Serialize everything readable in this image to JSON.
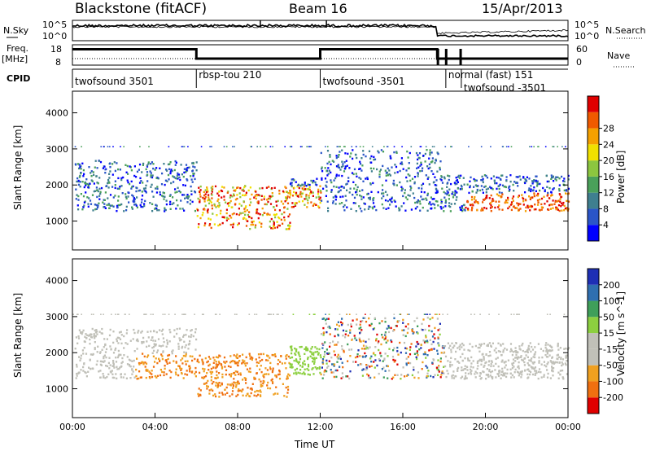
{
  "header": {
    "radar": "Blackstone (fitACF)",
    "beam": "Beam 16",
    "date": "15/Apr/2013"
  },
  "left_labels": {
    "nsky": "N.Sky",
    "freq_line1": "Freq.",
    "freq_line2": "[MHz]",
    "cpid": "CPID"
  },
  "right_labels": {
    "nsearch": "N.Search",
    "nave": "Nave"
  },
  "colors": {
    "power": [
      "#0000ff",
      "#2a55c8",
      "#3f7f8f",
      "#4aa05a",
      "#8cc63f",
      "#f0e000",
      "#f5a000",
      "#f05a00",
      "#e00000"
    ],
    "velocity": [
      "#1e2fb5",
      "#2f6fb0",
      "#3f9f5a",
      "#8ccf3f",
      "#c0c0b8",
      "#c0c0b8",
      "#f0a020",
      "#f07010",
      "#e00000"
    ]
  },
  "chart_data": [
    {
      "type": "line",
      "name": "noise-panel",
      "left_ylabel": "N.Sky",
      "right_ylabel": "N.Search",
      "left_ticks": [
        "10^5",
        "10^0"
      ],
      "right_ticks": [
        "10^5",
        "10^0"
      ],
      "yscale": "log",
      "ylim": [
        1,
        100000
      ]
    },
    {
      "type": "line",
      "name": "frequency-panel",
      "left_ylabel": "Freq. [MHz]",
      "right_ylabel": "Nave",
      "left_ticks": [
        18,
        8
      ],
      "right_ticks": [
        60,
        0
      ],
      "ylim": [
        8,
        18
      ],
      "freq_segments": [
        {
          "x": [
            "00:00",
            "06:00"
          ],
          "y": 15.8
        },
        {
          "x": [
            "06:00",
            "12:00"
          ],
          "y": 11.2
        },
        {
          "x": [
            "12:00",
            "17:40"
          ],
          "y": 15.8
        },
        {
          "x": [
            "17:40",
            "24:00"
          ],
          "y": 11.2
        }
      ]
    },
    {
      "type": "table",
      "name": "cpid-bar",
      "segments": [
        {
          "start": "00:00",
          "end": "06:00",
          "label": "twofsound 3501"
        },
        {
          "start": "06:00",
          "end": "12:00",
          "label": "rbsp-tou 210"
        },
        {
          "start": "12:00",
          "end": "18:05",
          "label": "twofsound -3501"
        },
        {
          "start": "18:05",
          "end": "18:50",
          "label": "normal (fast) 151"
        },
        {
          "start": "18:50",
          "end": "24:00",
          "label": "twofsound -3501"
        }
      ]
    },
    {
      "type": "heatmap",
      "name": "power-panel",
      "ylabel": "Slant Range [km]",
      "yticks": [
        1000,
        2000,
        3000,
        4000
      ],
      "ylim": [
        200,
        4600
      ],
      "xlim": [
        "00:00",
        "24:00"
      ],
      "colorbar_label": "Power [dB]",
      "colorbar_ticks": [
        4,
        8,
        12,
        16,
        20,
        24,
        28
      ],
      "colorbar_range": [
        0,
        32
      ]
    },
    {
      "type": "heatmap",
      "name": "velocity-panel",
      "ylabel": "Slant Range [km]",
      "yticks": [
        1000,
        2000,
        3000,
        4000
      ],
      "ylim": [
        200,
        4600
      ],
      "xlim": [
        "00:00",
        "24:00"
      ],
      "colorbar_label": "Velocity [m s^-1]",
      "colorbar_ticks": [
        200,
        100,
        50,
        15,
        -15,
        -50,
        -100,
        -200
      ],
      "xlabel": "Time UT",
      "xticks": [
        "00:00",
        "04:00",
        "08:00",
        "12:00",
        "16:00",
        "20:00",
        "00:00"
      ]
    }
  ]
}
